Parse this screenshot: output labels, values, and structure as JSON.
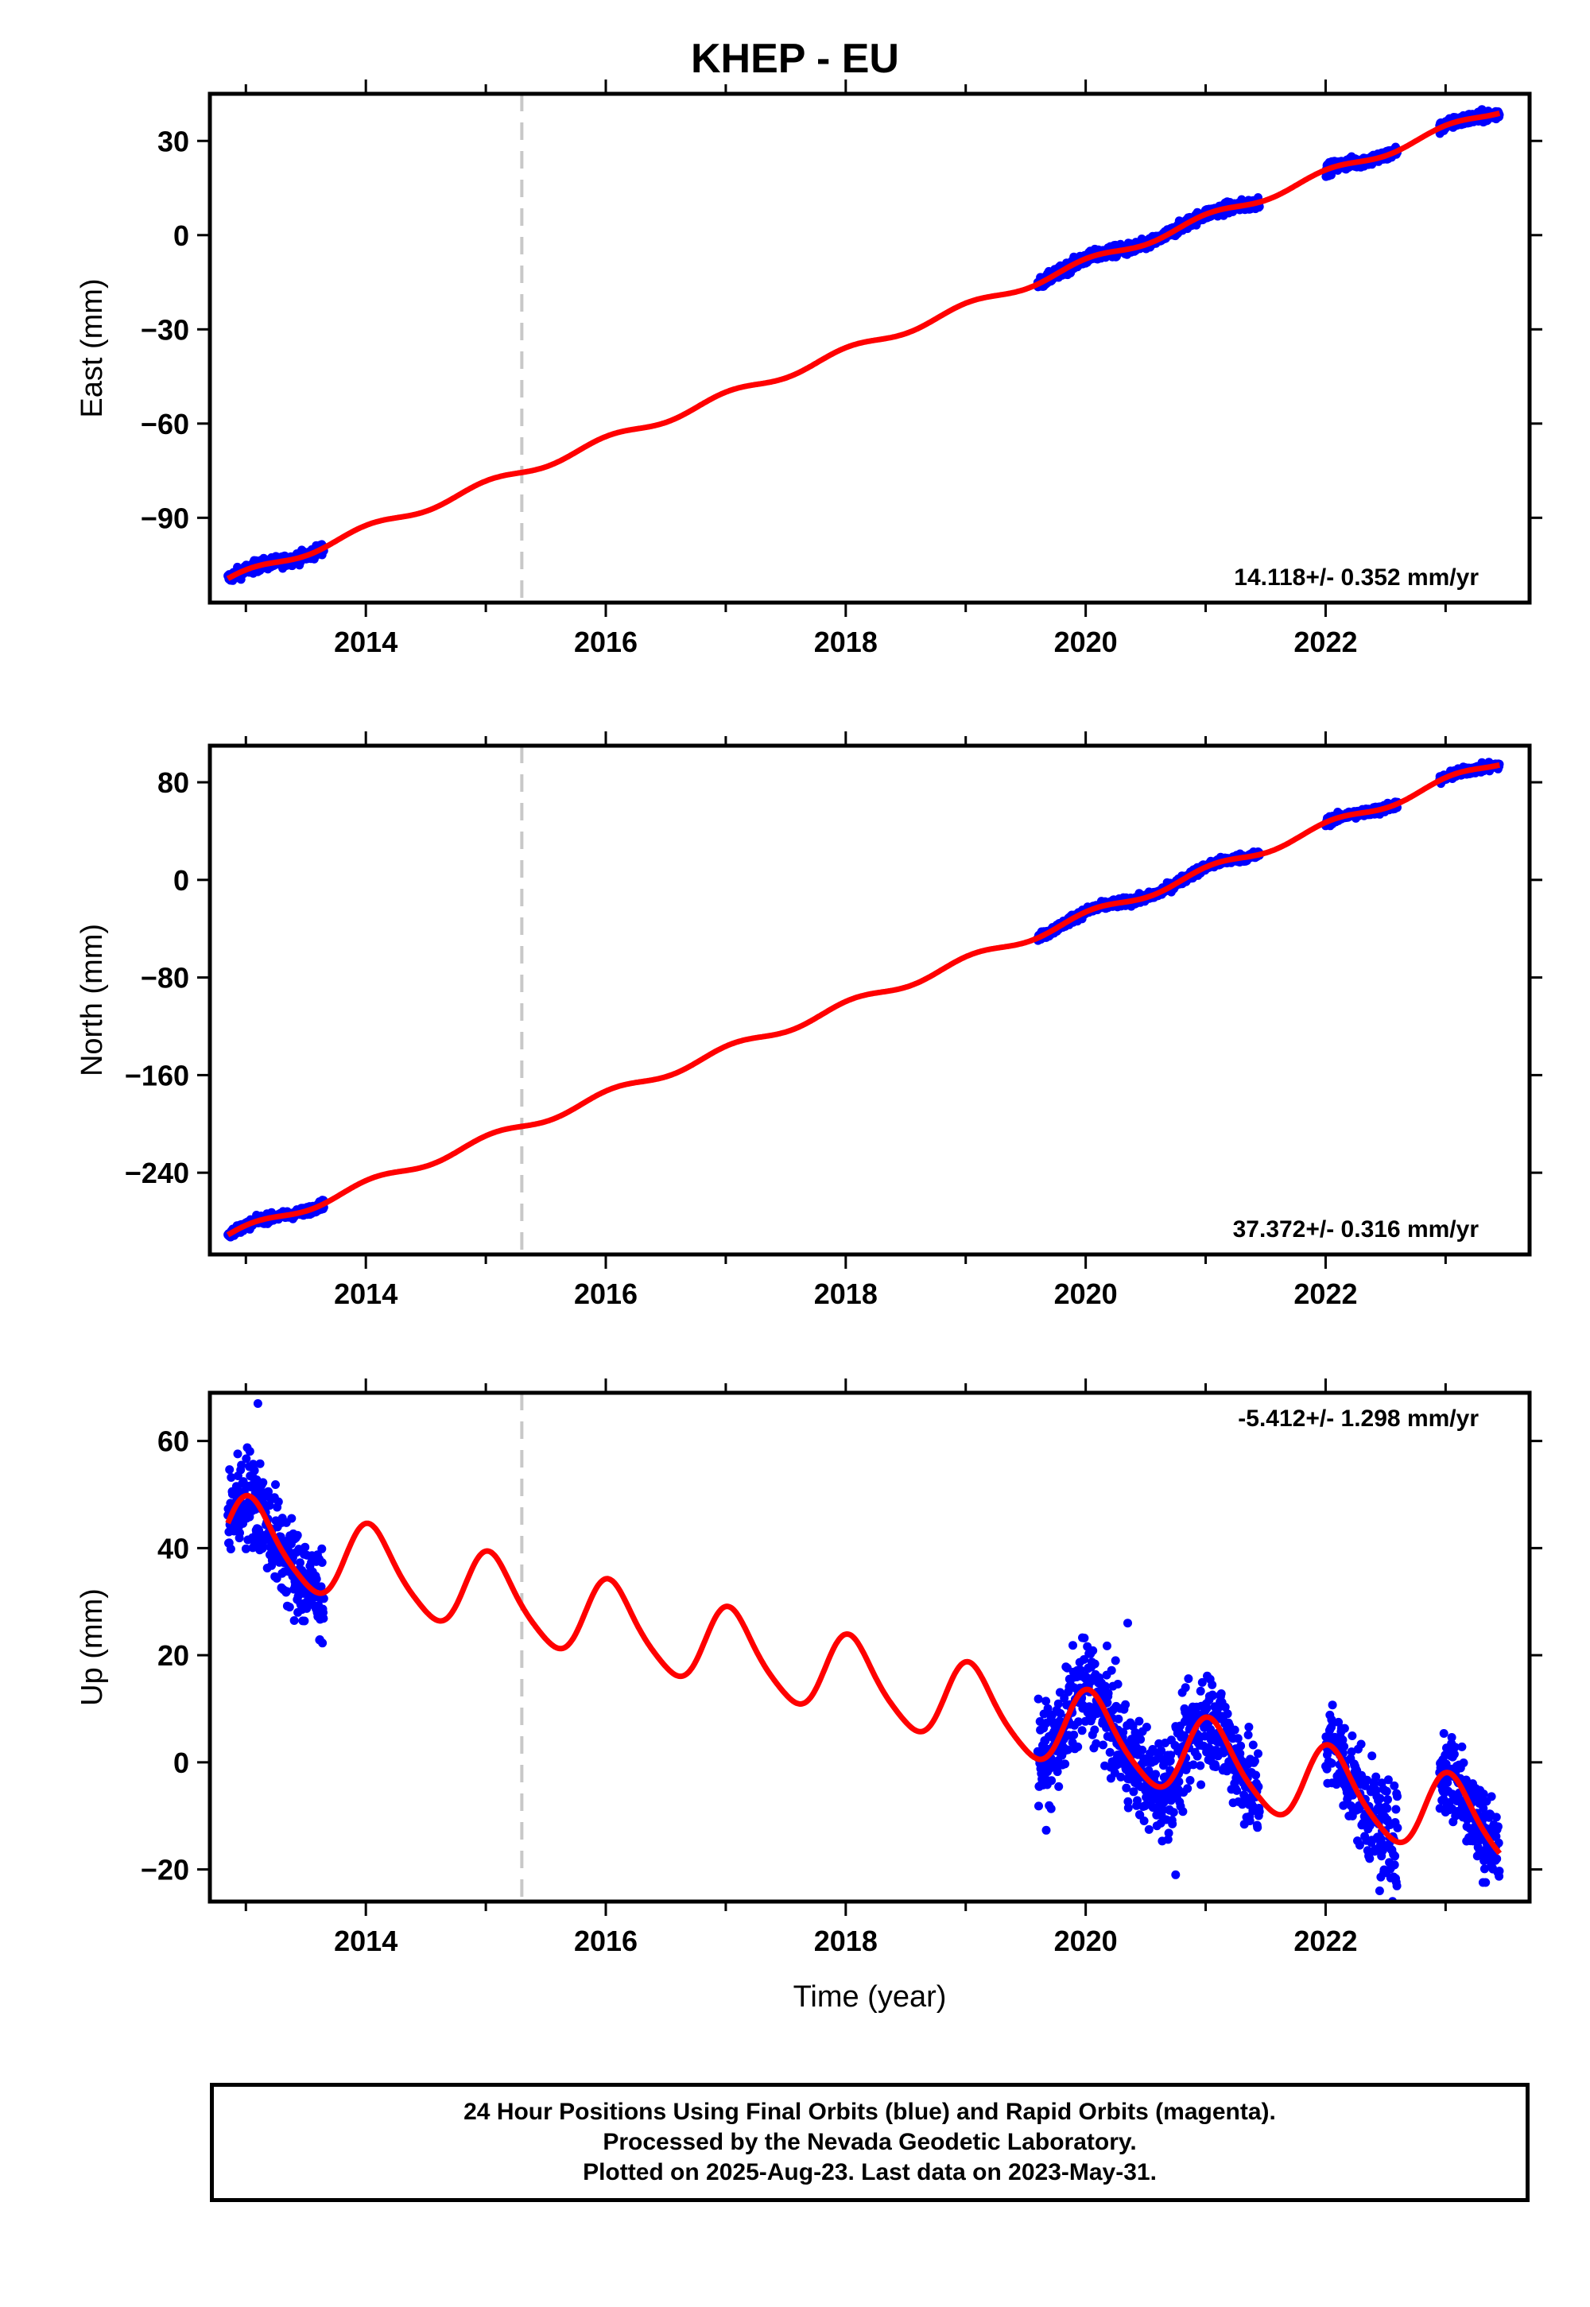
{
  "title": "KHEP - EU",
  "footer": {
    "line1": "24 Hour Positions Using Final Orbits (blue) and Rapid Orbits (magenta).",
    "line2": "Processed by the Nevada Geodetic Laboratory.",
    "line3": "Plotted on 2025-Aug-23. Last data on 2023-May-31."
  },
  "colors": {
    "data": "#0000ff",
    "model": "#ff0000",
    "event_line": "#c8c8c8",
    "frame": "#000000"
  },
  "chart_data": [
    {
      "type": "scatter",
      "ylabel": "East (mm)",
      "xlim": [
        2012.7,
        2023.7
      ],
      "ylim": [
        -117,
        45
      ],
      "yticks": [
        30,
        0,
        -30,
        -60,
        -90
      ],
      "ytick_labels": [
        "30",
        "0",
        "−30",
        "−60",
        "−90"
      ],
      "xticks": [
        2014,
        2016,
        2018,
        2020,
        2022
      ],
      "xtick_labels": [
        "2014",
        "2016",
        "2018",
        "2020",
        "2022"
      ],
      "rate": "14.118+/- 0.352 mm/yr",
      "event_line_x": 2015.3,
      "model": {
        "x0": 2012.85,
        "y0": -110,
        "x1": 2023.45,
        "y1": 40,
        "amp": 1.3,
        "phase": 0.5
      },
      "data_segments": [
        [
          2012.85,
          2013.65
        ],
        [
          2019.6,
          2021.45
        ],
        [
          2022.0,
          2022.6
        ],
        [
          2022.95,
          2023.45
        ]
      ],
      "scatter": 1.3
    },
    {
      "type": "scatter",
      "ylabel": "North (mm)",
      "xlim": [
        2012.7,
        2023.7
      ],
      "ylim": [
        -307,
        110
      ],
      "yticks": [
        80,
        0,
        -80,
        -160,
        -240
      ],
      "ytick_labels": [
        "80",
        "0",
        "−80",
        "−160",
        "−240"
      ],
      "xticks": [
        2014,
        2016,
        2018,
        2020,
        2022
      ],
      "xtick_labels": [
        "2014",
        "2016",
        "2018",
        "2020",
        "2022"
      ],
      "rate": "37.372+/- 0.316 mm/yr",
      "event_line_x": 2015.3,
      "model": {
        "x0": 2012.85,
        "y0": -292,
        "x1": 2023.45,
        "y1": 97,
        "amp": 3.5,
        "phase": 0.3
      },
      "data_segments": [
        [
          2012.85,
          2013.65
        ],
        [
          2019.6,
          2021.45
        ],
        [
          2022.0,
          2022.6
        ],
        [
          2022.95,
          2023.45
        ]
      ],
      "scatter": 2.5
    },
    {
      "type": "scatter",
      "ylabel": "Up (mm)",
      "xlabel": "Time (year)",
      "xlim": [
        2012.7,
        2023.7
      ],
      "ylim": [
        -26,
        69
      ],
      "yticks": [
        60,
        40,
        20,
        0,
        -20
      ],
      "ytick_labels": [
        "60",
        "40",
        "20",
        "0",
        "−20"
      ],
      "xticks": [
        2014,
        2016,
        2018,
        2020,
        2022
      ],
      "xtick_labels": [
        "2014",
        "2016",
        "2018",
        "2020",
        "2022"
      ],
      "rate": "-5.412+/- 1.298 mm/yr",
      "event_line_x": 2015.3,
      "model": {
        "x0": 2012.85,
        "y0": 42.5,
        "x1": 2023.45,
        "y1": -12.3,
        "amp": 7.3,
        "phase": 0.3,
        "amp2": 1.2
      },
      "data_segments": [
        [
          2012.85,
          2013.65
        ],
        [
          2019.6,
          2021.45
        ],
        [
          2022.0,
          2022.6
        ],
        [
          2022.95,
          2023.45
        ]
      ],
      "scatter": 6.5,
      "highlights": [
        [
          2013.1,
          67
        ],
        [
          2020.35,
          26
        ],
        [
          2022.45,
          -24
        ],
        [
          2020.75,
          -21
        ]
      ]
    }
  ]
}
